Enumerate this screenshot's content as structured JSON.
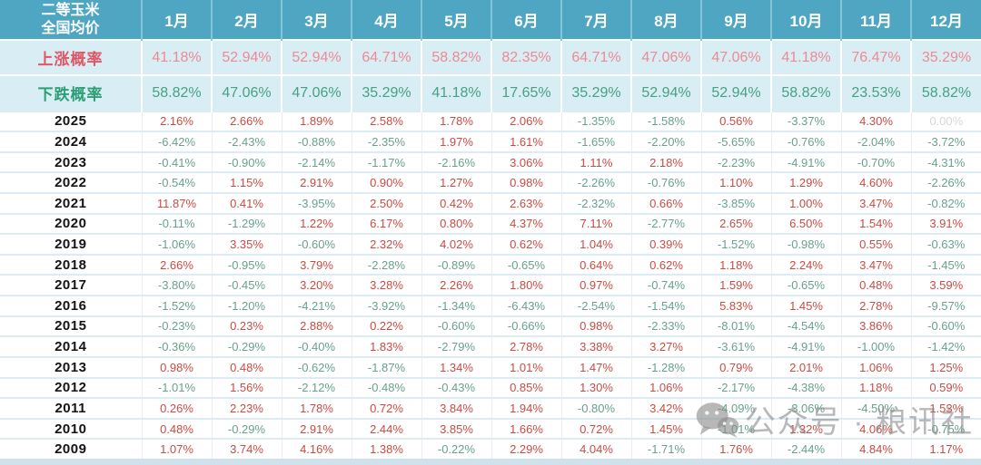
{
  "chart_data": {
    "type": "table",
    "corner_label_line1": "二等玉米",
    "corner_label_line2": "全国均价",
    "months": [
      "1月",
      "2月",
      "3月",
      "4月",
      "5月",
      "6月",
      "7月",
      "8月",
      "9月",
      "10月",
      "11月",
      "12月"
    ],
    "probability_rows": [
      {
        "key": "rise",
        "label": "上涨概率",
        "values": [
          "41.18%",
          "52.94%",
          "52.94%",
          "64.71%",
          "58.82%",
          "82.35%",
          "64.71%",
          "47.06%",
          "47.06%",
          "41.18%",
          "76.47%",
          "35.29%"
        ]
      },
      {
        "key": "fall",
        "label": "下跌概率",
        "values": [
          "58.82%",
          "47.06%",
          "47.06%",
          "35.29%",
          "41.18%",
          "17.65%",
          "35.29%",
          "52.94%",
          "52.94%",
          "58.82%",
          "23.53%",
          "58.82%"
        ]
      }
    ],
    "year_rows": [
      {
        "year": "2025",
        "values": [
          "2.16%",
          "2.66%",
          "1.89%",
          "2.58%",
          "1.78%",
          "2.06%",
          "-1.35%",
          "-1.58%",
          "0.56%",
          "-3.37%",
          "4.30%",
          "0.00%"
        ]
      },
      {
        "year": "2024",
        "values": [
          "-6.42%",
          "-2.43%",
          "-0.88%",
          "-2.35%",
          "1.97%",
          "1.61%",
          "-1.65%",
          "-2.20%",
          "-5.65%",
          "-0.76%",
          "-2.04%",
          "-3.72%"
        ]
      },
      {
        "year": "2023",
        "values": [
          "-0.41%",
          "-0.90%",
          "-2.14%",
          "-1.17%",
          "-2.16%",
          "3.06%",
          "1.11%",
          "2.18%",
          "-2.23%",
          "-4.91%",
          "-0.70%",
          "-4.31%"
        ]
      },
      {
        "year": "2022",
        "values": [
          "-0.54%",
          "1.15%",
          "2.91%",
          "0.90%",
          "1.27%",
          "0.98%",
          "-2.26%",
          "-0.76%",
          "1.10%",
          "1.29%",
          "4.60%",
          "-2.26%"
        ]
      },
      {
        "year": "2021",
        "values": [
          "11.87%",
          "0.41%",
          "-3.95%",
          "2.50%",
          "0.42%",
          "2.63%",
          "-2.32%",
          "0.66%",
          "-3.85%",
          "1.00%",
          "3.47%",
          "-0.82%"
        ]
      },
      {
        "year": "2020",
        "values": [
          "-0.11%",
          "-1.29%",
          "1.22%",
          "6.17%",
          "0.80%",
          "4.37%",
          "7.11%",
          "-2.77%",
          "2.65%",
          "6.50%",
          "1.54%",
          "3.91%"
        ]
      },
      {
        "year": "2019",
        "values": [
          "-1.06%",
          "3.35%",
          "-0.60%",
          "2.32%",
          "4.02%",
          "0.62%",
          "1.04%",
          "0.39%",
          "-1.52%",
          "-0.98%",
          "0.55%",
          "-0.63%"
        ]
      },
      {
        "year": "2018",
        "values": [
          "2.66%",
          "-0.95%",
          "3.79%",
          "-2.28%",
          "-0.89%",
          "-0.65%",
          "0.64%",
          "0.62%",
          "1.18%",
          "2.24%",
          "3.47%",
          "-1.45%"
        ]
      },
      {
        "year": "2017",
        "values": [
          "-3.80%",
          "-0.45%",
          "3.20%",
          "3.28%",
          "2.26%",
          "1.80%",
          "0.97%",
          "-0.74%",
          "1.59%",
          "-0.65%",
          "0.48%",
          "3.59%"
        ]
      },
      {
        "year": "2016",
        "values": [
          "-1.52%",
          "-1.20%",
          "-4.21%",
          "-3.92%",
          "-1.34%",
          "-6.43%",
          "-2.54%",
          "-1.54%",
          "5.83%",
          "1.45%",
          "2.78%",
          "-9.57%"
        ]
      },
      {
        "year": "2015",
        "values": [
          "-0.23%",
          "0.23%",
          "2.88%",
          "0.22%",
          "-0.60%",
          "-0.66%",
          "0.98%",
          "-2.33%",
          "-8.01%",
          "-4.54%",
          "3.86%",
          "-0.60%"
        ]
      },
      {
        "year": "2014",
        "values": [
          "-0.36%",
          "-0.29%",
          "-0.40%",
          "1.83%",
          "-2.79%",
          "2.78%",
          "3.38%",
          "3.27%",
          "-3.61%",
          "-4.91%",
          "-1.00%",
          "-1.42%"
        ]
      },
      {
        "year": "2013",
        "values": [
          "0.98%",
          "0.48%",
          "-0.62%",
          "-1.87%",
          "1.34%",
          "1.01%",
          "1.47%",
          "-1.28%",
          "0.79%",
          "2.01%",
          "1.06%",
          "1.25%"
        ]
      },
      {
        "year": "2012",
        "values": [
          "-1.01%",
          "1.56%",
          "-2.12%",
          "-0.48%",
          "-0.43%",
          "0.85%",
          "1.30%",
          "1.06%",
          "-2.17%",
          "-4.38%",
          "1.18%",
          "0.59%"
        ]
      },
      {
        "year": "2011",
        "values": [
          "0.26%",
          "2.23%",
          "1.78%",
          "0.72%",
          "3.84%",
          "1.94%",
          "-0.80%",
          "3.42%",
          "-4.09%",
          "-3.06%",
          "-4.50%",
          "1.53%"
        ]
      },
      {
        "year": "2010",
        "values": [
          "0.48%",
          "-0.29%",
          "2.91%",
          "2.44%",
          "3.85%",
          "1.66%",
          "0.72%",
          "1.45%",
          "-1.01%",
          "1.32%",
          "4.06%",
          "-0.75%"
        ]
      },
      {
        "year": "2009",
        "values": [
          "1.07%",
          "3.74%",
          "4.16%",
          "1.38%",
          "-0.22%",
          "2.29%",
          "4.04%",
          "-1.71%",
          "1.76%",
          "-2.44%",
          "4.84%",
          "1.17%"
        ]
      }
    ]
  },
  "watermark": {
    "text": "公众号 · 粮讯社"
  },
  "colors": {
    "header_bg": "#4FA6C2",
    "header_sep": "#85C5D8",
    "prob_bg": "#D8EDF4",
    "rise_label": "#E25663",
    "rise_value": "#EE8A94",
    "fall_label": "#2E9E77",
    "fall_value": "#47A183",
    "up": "#CB4B43",
    "down": "#68A28B",
    "zero": "#D8D8D8",
    "bottom_strip": "#CFE2EC"
  }
}
